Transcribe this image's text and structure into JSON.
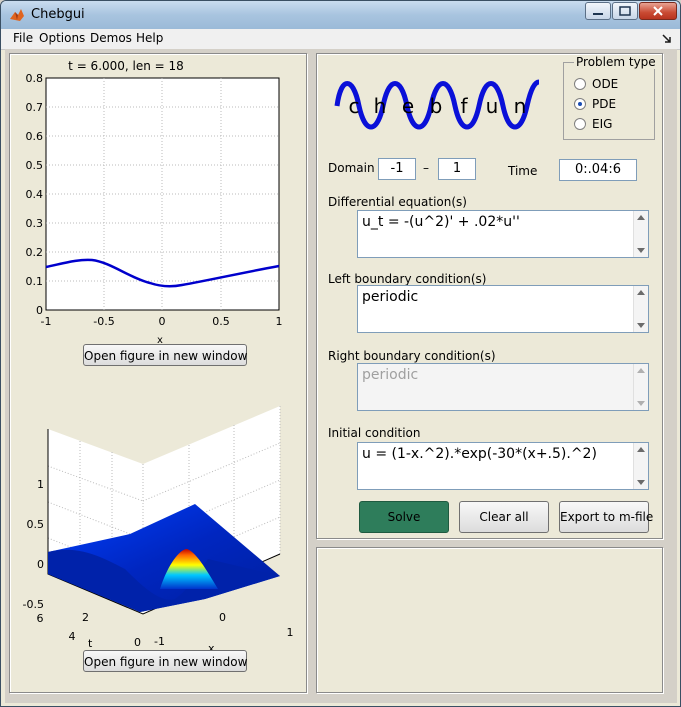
{
  "window": {
    "title": "Chebgui"
  },
  "menu": [
    "File",
    "Options",
    "Demos",
    "Help"
  ],
  "plot1": {
    "title": "t = 6.000,  len = 18",
    "xlabel": "x",
    "xticks": [
      "-1",
      "-0.5",
      "0",
      "0.5",
      "1"
    ],
    "yticks": [
      "0",
      "0.1",
      "0.2",
      "0.3",
      "0.4",
      "0.5",
      "0.6",
      "0.7",
      "0.8"
    ],
    "curve_color": "#0000cc"
  },
  "plot2": {
    "zticks": [
      "1",
      "0.5",
      "0",
      "-0.5"
    ],
    "tticks": [
      "6",
      "4",
      "2",
      "0"
    ],
    "xticks": [
      "-1",
      "0",
      "1"
    ],
    "tlabel": "t",
    "xlabel": "x"
  },
  "buttons": {
    "open_figure_1": "Open figure in new window",
    "open_figure_2": "Open figure in new window",
    "solve": "Solve",
    "clear_all": "Clear all",
    "export": "Export to m-file"
  },
  "logo": {
    "letters": [
      "c",
      "h",
      "e",
      "b",
      "f",
      "u",
      "n"
    ]
  },
  "problem_type": {
    "title": "Problem type",
    "options": [
      "ODE",
      "PDE",
      "EIG"
    ],
    "selected": "PDE"
  },
  "domain": {
    "label": "Domain",
    "left": "-1",
    "dash": "–",
    "right": "1"
  },
  "time": {
    "label": "Time",
    "value": "0:.04:6"
  },
  "diff_eq": {
    "label": "Differential equation(s)",
    "value": "u_t = -(u^2)' + .02*u''"
  },
  "left_bc": {
    "label": "Left boundary condition(s)",
    "value": "periodic"
  },
  "right_bc": {
    "label": "Right boundary condition(s)",
    "value": "periodic"
  },
  "initial": {
    "label": "Initial condition",
    "value": "u = (1-x.^2).*exp(-30*(x+.5).^2)"
  },
  "colors": {
    "solve_button": "#2e7d5b",
    "curve": "#0000cc"
  }
}
